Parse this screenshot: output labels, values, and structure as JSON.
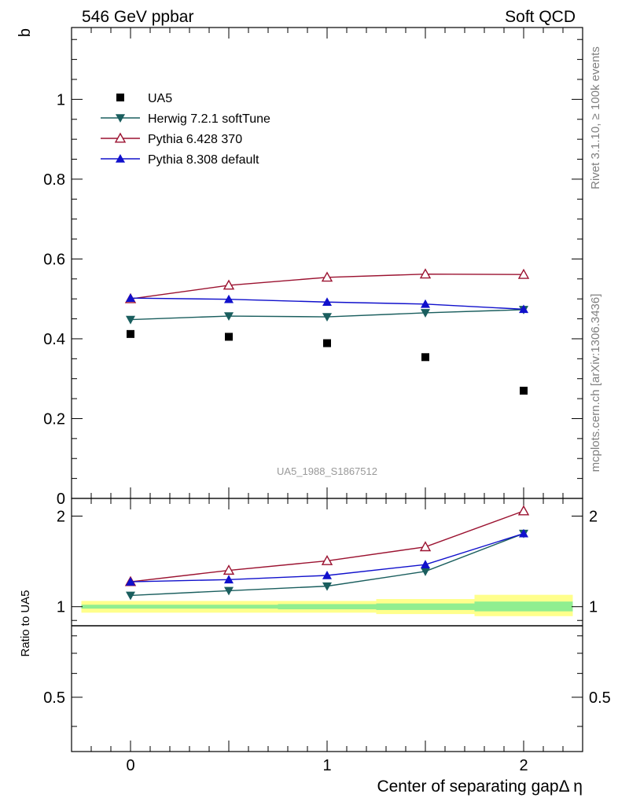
{
  "header": {
    "left": "546 GeV ppbar",
    "right": "Soft QCD"
  },
  "side_labels": {
    "rivet": "Rivet 3.1.10, ≥ 100k events",
    "mcplots": "mcplots.cern.ch [arXiv:1306.3436]"
  },
  "chart_data": [
    {
      "type": "scatter",
      "panel": "main",
      "ylabel": "b",
      "ylim": [
        0,
        1.18
      ],
      "yticks": [
        0,
        0.2,
        0.4,
        0.6,
        0.8,
        1
      ],
      "ytick_labels": [
        "0",
        "0.2",
        "0.4",
        "0.6",
        "0.8",
        "1"
      ],
      "xlim": [
        -0.3,
        2.3
      ],
      "watermark": "UA5_1988_S1867512",
      "legend_position": "top-left",
      "series": [
        {
          "name": "UA5",
          "color": "#000000",
          "marker": "square",
          "x": [
            0,
            0.5,
            1,
            1.5,
            2
          ],
          "y": [
            0.412,
            0.405,
            0.389,
            0.354,
            0.27
          ]
        },
        {
          "name": "Herwig 7.2.1 softTune",
          "color": "#1a5e5e",
          "marker": "triangle-down",
          "x": [
            0,
            0.5,
            1,
            1.5,
            2
          ],
          "y": [
            0.448,
            0.457,
            0.455,
            0.465,
            0.473
          ]
        },
        {
          "name": "Pythia 6.428 370",
          "color": "#9b1230",
          "marker": "triangle-open",
          "x": [
            0,
            0.5,
            1,
            1.5,
            2
          ],
          "y": [
            0.5,
            0.534,
            0.554,
            0.562,
            0.561
          ]
        },
        {
          "name": "Pythia 8.308 default",
          "color": "#1010cc",
          "marker": "triangle-up",
          "x": [
            0,
            0.5,
            1,
            1.5,
            2
          ],
          "y": [
            0.502,
            0.499,
            0.492,
            0.487,
            0.474
          ]
        }
      ]
    },
    {
      "type": "line",
      "panel": "ratio",
      "ylabel": "Ratio to UA5",
      "xlabel": "Center of separating gapΔ η",
      "ylim": [
        0.33,
        2.29
      ],
      "yticks": [
        0.5,
        1,
        2
      ],
      "ytick_labels": [
        "0.5",
        "1",
        "2"
      ],
      "xlim": [
        -0.3,
        2.3
      ],
      "xticks": [
        0,
        1,
        2
      ],
      "xtick_labels": [
        "0",
        "1",
        "2"
      ],
      "bands": [
        {
          "x": [
            -0.25,
            0.25
          ],
          "inner": [
            0.985,
            1.015
          ],
          "outer": [
            0.955,
            1.045
          ]
        },
        {
          "x": [
            0.25,
            0.75
          ],
          "inner": [
            0.985,
            1.015
          ],
          "outer": [
            0.955,
            1.045
          ]
        },
        {
          "x": [
            0.75,
            1.25
          ],
          "inner": [
            0.98,
            1.02
          ],
          "outer": [
            0.955,
            1.045
          ]
        },
        {
          "x": [
            1.25,
            1.75
          ],
          "inner": [
            0.975,
            1.025
          ],
          "outer": [
            0.945,
            1.06
          ]
        },
        {
          "x": [
            1.75,
            2.25
          ],
          "inner": [
            0.965,
            1.04
          ],
          "outer": [
            0.93,
            1.095
          ]
        }
      ],
      "band_colors": {
        "inner": "#90ee90",
        "outer": "#ffff8c"
      },
      "series": [
        {
          "name": "Herwig 7.2.1 softTune",
          "color": "#1a5e5e",
          "marker": "triangle-down",
          "x": [
            0,
            0.5,
            1,
            1.5,
            2
          ],
          "y": [
            1.09,
            1.13,
            1.17,
            1.31,
            1.75
          ]
        },
        {
          "name": "Pythia 6.428 370",
          "color": "#9b1230",
          "marker": "triangle-open",
          "x": [
            0,
            0.5,
            1,
            1.5,
            2
          ],
          "y": [
            1.21,
            1.32,
            1.42,
            1.58,
            2.08
          ]
        },
        {
          "name": "Pythia 8.308 default",
          "color": "#1010cc",
          "marker": "triangle-up",
          "x": [
            0,
            0.5,
            1,
            1.5,
            2
          ],
          "y": [
            1.21,
            1.23,
            1.27,
            1.38,
            1.75
          ]
        }
      ]
    }
  ]
}
